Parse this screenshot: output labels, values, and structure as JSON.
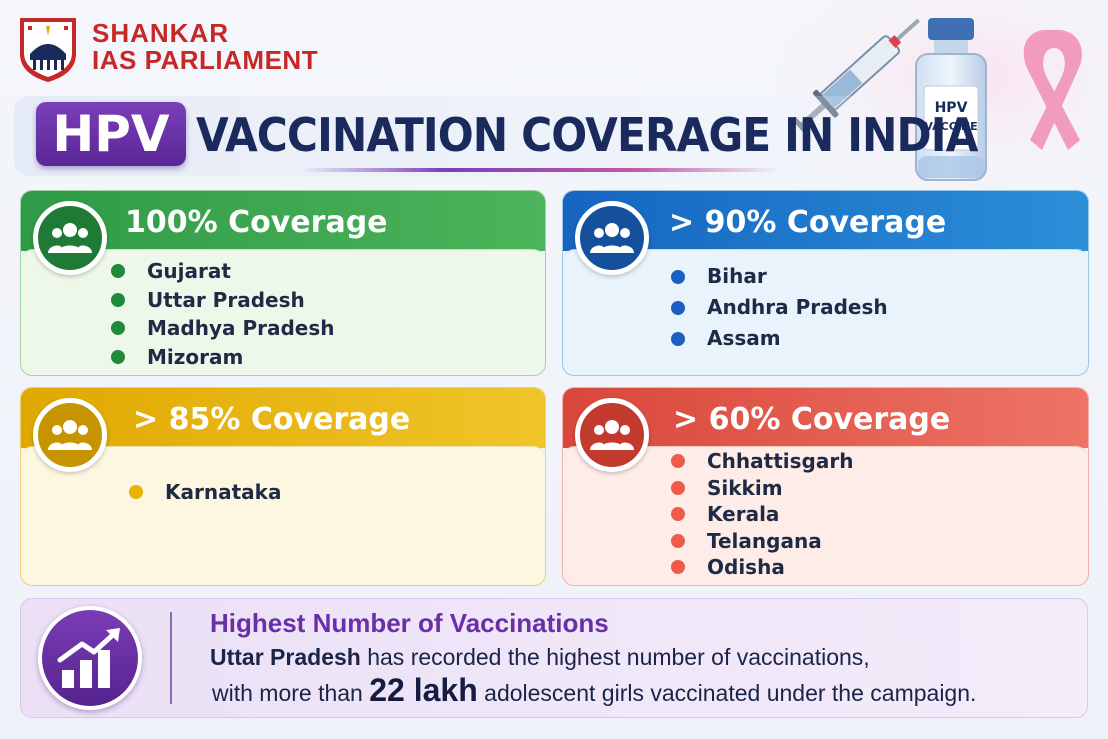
{
  "brand": {
    "line1": "SHANKAR",
    "line2": "IAS PARLIAMENT"
  },
  "title": {
    "badge": "HPV",
    "text": "VACCINATION COVERAGE IN INDIA"
  },
  "vial_label": {
    "line1": "HPV",
    "line2": "VACCINE"
  },
  "cards": [
    {
      "title": "100% Coverage",
      "color": "#2f9a47",
      "items": [
        "Gujarat",
        "Uttar Pradesh",
        "Madhya Pradesh",
        "Mizoram"
      ]
    },
    {
      "title": "> 90% Coverage",
      "color": "#1565c0",
      "items": [
        "Bihar",
        "Andhra Pradesh",
        "Assam"
      ]
    },
    {
      "title": "> 85% Coverage",
      "color": "#e0a800",
      "items": [
        "Karnataka"
      ]
    },
    {
      "title": "> 60% Coverage",
      "color": "#d9473b",
      "items": [
        "Chhattisgarh",
        "Sikkim",
        "Kerala",
        "Telangana",
        "Odisha"
      ]
    }
  ],
  "highlight": {
    "heading": "Highest Number of Vaccinations",
    "state": "Uttar Pradesh",
    "line1_rest": " has recorded the highest number of vaccinations,",
    "line2_pre": "with more than ",
    "number": "22 lakh",
    "line2_post": " adolescent girls vaccinated under the campaign."
  },
  "icons": {
    "logo": "parliament-emblem-icon",
    "people": "group-people-icon",
    "chart": "growth-chart-icon",
    "syringe": "syringe-icon",
    "vial": "vaccine-vial-icon",
    "ribbon": "awareness-ribbon-icon"
  }
}
